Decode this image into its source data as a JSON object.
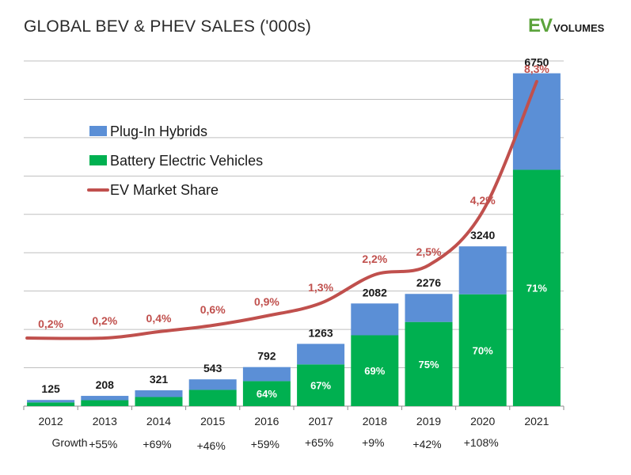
{
  "header": {
    "title": "GLOBAL BEV & PHEV SALES ('000s)",
    "logo": {
      "ev": "EV",
      "volumes": "VOLUMES"
    }
  },
  "colors": {
    "phev": "#5b8fd6",
    "bev": "#00b050",
    "share_line": "#c0504d",
    "grid": "#bfbfbf",
    "axis_text": "#222222"
  },
  "chart_data": {
    "type": "bar",
    "title": "GLOBAL BEV & PHEV SALES ('000s)",
    "stacked": true,
    "categories": [
      "2012",
      "2013",
      "2014",
      "2015",
      "2016",
      "2017",
      "2018",
      "2019",
      "2020",
      "2021"
    ],
    "totals": [
      125,
      208,
      321,
      543,
      792,
      1263,
      2082,
      2276,
      3240,
      6750
    ],
    "total_labels": [
      "125",
      "208",
      "321",
      "543",
      "792",
      "1263",
      "2082",
      "2276",
      "3240",
      "6750"
    ],
    "series": [
      {
        "name": "Battery Electric Vehicles",
        "values": [
          75,
          120,
          185,
          330,
          507,
          846,
          1437,
          1707,
          2268,
          4793
        ]
      },
      {
        "name": "Plug-In Hybrids",
        "values": [
          50,
          88,
          136,
          213,
          285,
          417,
          645,
          569,
          972,
          1957
        ]
      }
    ],
    "bev_share_labels": [
      "",
      "",
      "",
      "",
      "64%",
      "67%",
      "69%",
      "75%",
      "70%",
      "71%"
    ],
    "market_share": {
      "name": "EV Market Share",
      "values": [
        0.2,
        0.2,
        0.4,
        0.6,
        0.9,
        1.3,
        2.2,
        2.5,
        4.2,
        8.3
      ],
      "labels": [
        "0,2%",
        "0,2%",
        "0,4%",
        "0,6%",
        "0,9%",
        "1,3%",
        "2,2%",
        "2,5%",
        "4,2%",
        "8,3%"
      ],
      "axis_max": 8.5
    },
    "legend": [
      "Plug-In Hybrids",
      "Battery Electric Vehicles",
      "EV Market Share"
    ],
    "legend_position": "top-left",
    "ylim": [
      0,
      7000
    ],
    "grid": true,
    "growth_label": "Growth",
    "growth": [
      "+55%",
      "+69%",
      "+46%",
      "+59%",
      "+65%",
      "+9%",
      "+42%",
      "+108%"
    ]
  }
}
